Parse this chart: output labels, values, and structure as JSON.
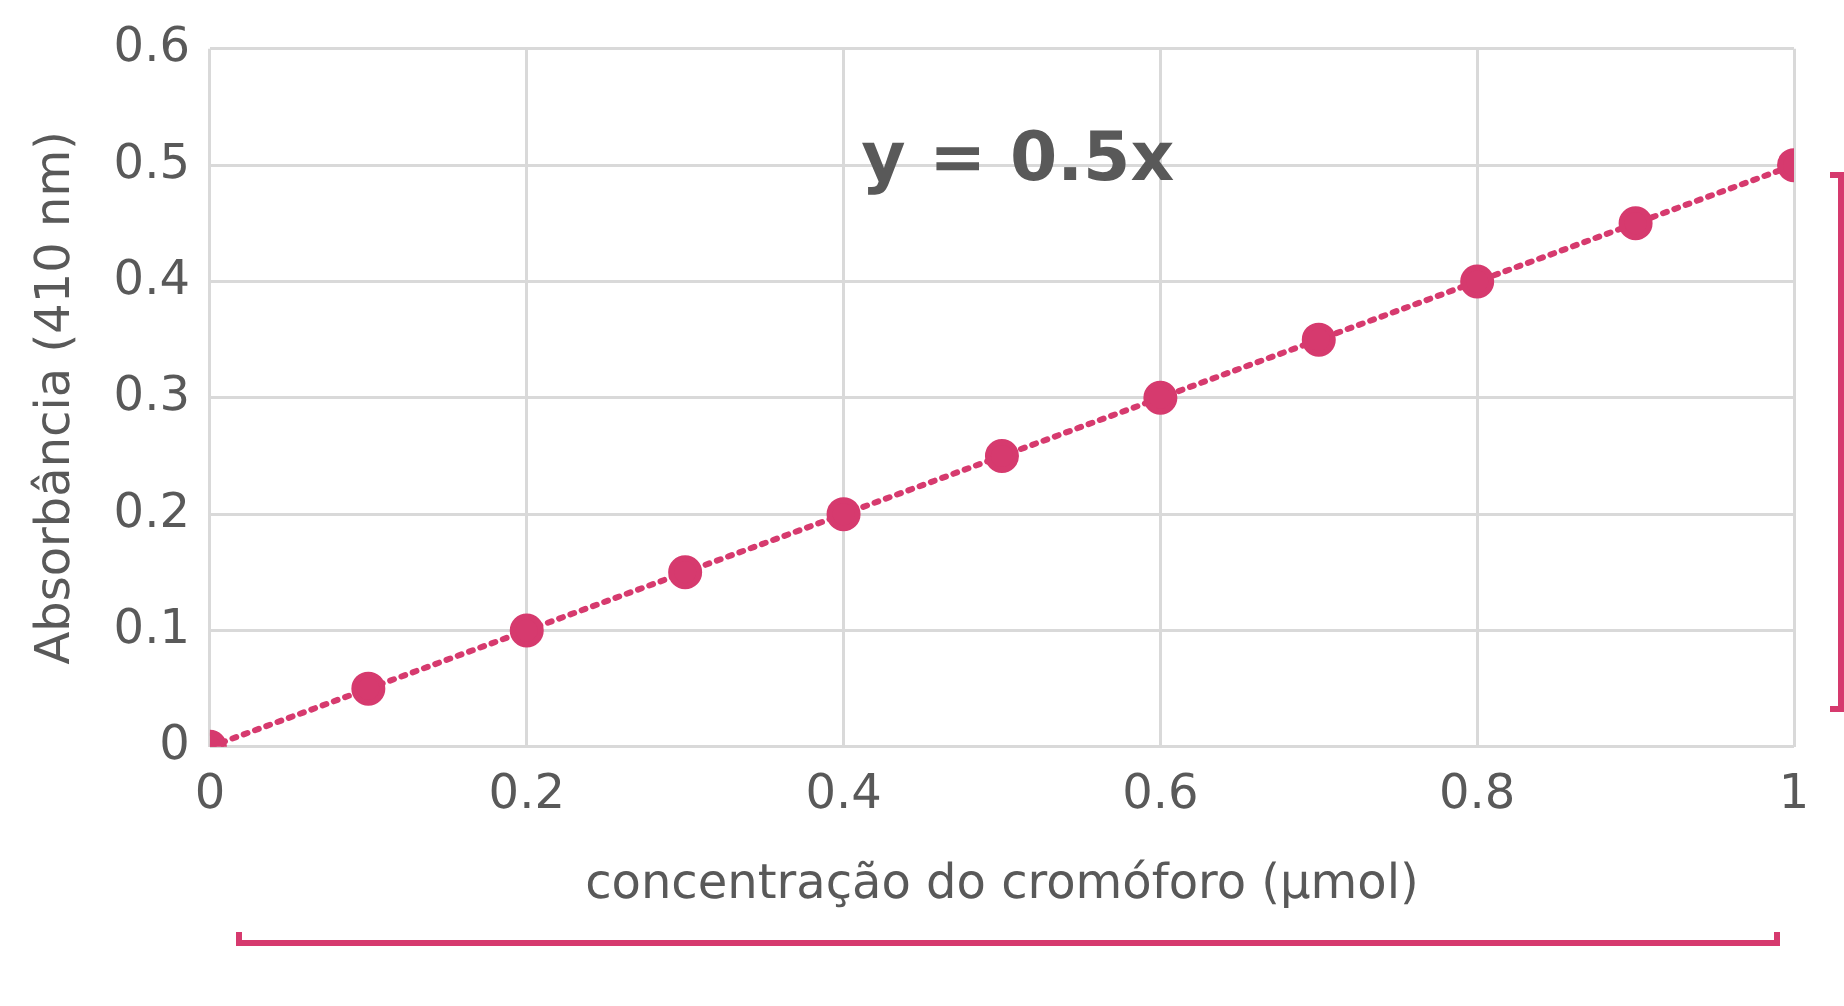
{
  "chart_data": {
    "type": "line",
    "xlabel": "concentração do cromóforo (μmol)",
    "ylabel": "Absorbância (410 nm)",
    "annotations": [
      "y = 0.5x"
    ],
    "x": [
      0,
      0.1,
      0.2,
      0.3,
      0.4,
      0.5,
      0.6,
      0.7,
      0.8,
      0.9,
      1
    ],
    "series": [
      {
        "color": "#d63a6e",
        "values": [
          0,
          0.05,
          0.1,
          0.15,
          0.2,
          0.25,
          0.3,
          0.35,
          0.4,
          0.45,
          0.5
        ]
      }
    ],
    "xlim": [
      0,
      1
    ],
    "xticks": [
      0,
      0.2,
      0.4,
      0.6,
      0.8,
      1
    ],
    "ylim": [
      0,
      0.6
    ],
    "yticks": [
      0,
      0.1,
      0.2,
      0.3,
      0.4,
      0.5,
      0.6
    ],
    "grid": true,
    "marker": "circle",
    "line_style": "dotted"
  }
}
